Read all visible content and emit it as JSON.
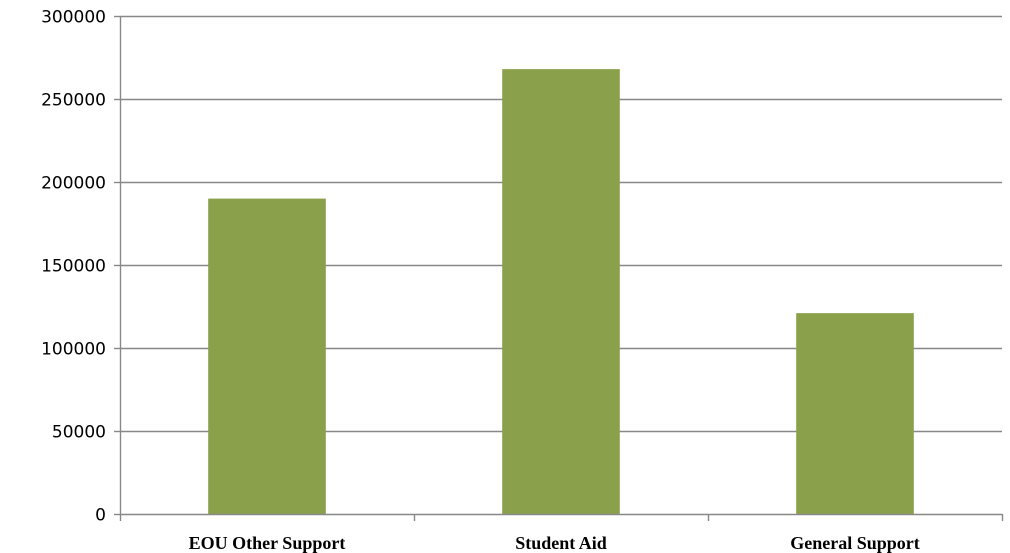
{
  "chart_data": {
    "type": "bar",
    "categories": [
      "EOU Other Support",
      "Student Aid",
      "General Support"
    ],
    "values": [
      190000,
      268000,
      121000
    ],
    "title": "",
    "xlabel": "",
    "ylabel": "",
    "ylim": [
      0,
      300000
    ],
    "yticks": [
      0,
      50000,
      100000,
      150000,
      200000,
      250000,
      300000
    ],
    "grid": true,
    "legend": "none",
    "bar_color": "#8aa04a",
    "grid_color": "#888888",
    "axis_color": "#888888"
  }
}
